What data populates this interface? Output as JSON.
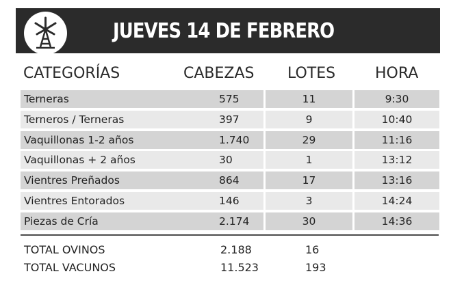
{
  "banner": {
    "title": "JUEVES 14 DE FEBRERO",
    "logo_icon": "windmill-icon"
  },
  "table": {
    "headers": {
      "category": "CATEGORÍAS",
      "heads": "CABEZAS",
      "lots": "LOTES",
      "time": "HORA"
    },
    "rows": [
      {
        "category": "Terneras",
        "heads": "575",
        "lots": "11",
        "time": "9:30"
      },
      {
        "category": "Terneros / Terneras",
        "heads": "397",
        "lots": "9",
        "time": "10:40"
      },
      {
        "category": "Vaquillonas 1-2 años",
        "heads": "1.740",
        "lots": "29",
        "time": "11:16"
      },
      {
        "category": "Vaquillonas + 2 años",
        "heads": "30",
        "lots": "1",
        "time": "13:12"
      },
      {
        "category": "Vientres Preñados",
        "heads": "864",
        "lots": "17",
        "time": "13:16"
      },
      {
        "category": "Vientres Entorados",
        "heads": "146",
        "lots": "3",
        "time": "14:24"
      },
      {
        "category": "Piezas de Cría",
        "heads": "2.174",
        "lots": "30",
        "time": "14:36"
      }
    ]
  },
  "totals": [
    {
      "label": "TOTAL OVINOS",
      "heads": "2.188",
      "lots": "16"
    },
    {
      "label": "TOTAL VACUNOS",
      "heads": "11.523",
      "lots": "193"
    }
  ],
  "colors": {
    "banner": "#2b2b2b",
    "row_dark": "#d4d4d4",
    "row_light": "#e9e9e9"
  }
}
